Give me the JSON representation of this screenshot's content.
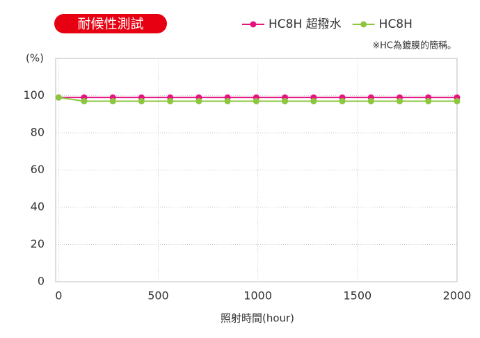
{
  "chart_data": {
    "type": "line",
    "title": "耐候性測試",
    "note": "※HC為鍍膜的簡稱。",
    "y_label": "(%)",
    "x_label": "照射時間(hour)",
    "xlim": [
      -15,
      2000
    ],
    "xticks": [
      0,
      500,
      1000,
      1500,
      2000
    ],
    "ylim": [
      0,
      120
    ],
    "yticks": [
      0,
      20,
      40,
      60,
      80,
      100
    ],
    "grid": true,
    "x": [
      0,
      128,
      272,
      416,
      560,
      704,
      848,
      992,
      1136,
      1280,
      1424,
      1568,
      1712,
      1856,
      2000
    ],
    "series": [
      {
        "name": "HC8H 超撥水",
        "color": "#e4157f",
        "values": [
          99,
          99,
          99,
          99,
          99,
          99,
          99,
          99,
          99,
          99,
          99,
          99,
          99,
          99,
          99
        ]
      },
      {
        "name": "HC8H",
        "color": "#8cc63f",
        "values": [
          99,
          97,
          97,
          97,
          97,
          97,
          97,
          97,
          97,
          97,
          97,
          97,
          97,
          97,
          97
        ]
      }
    ]
  }
}
